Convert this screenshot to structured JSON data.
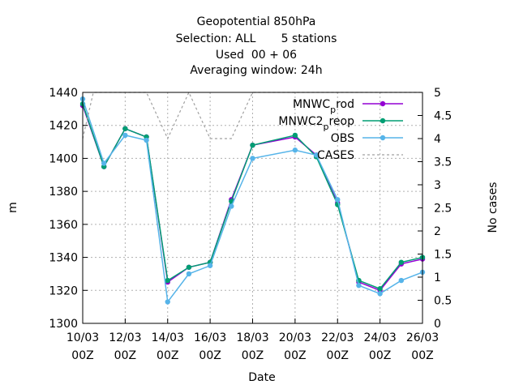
{
  "chart_data": {
    "type": "line",
    "title_lines": [
      "Geopotential 850hPa",
      "Selection: ALL       5 stations",
      "Used  00 + 06",
      "Averaging window: 24h"
    ],
    "xlabel": "Date",
    "ylabel": "m",
    "y2label": "No cases",
    "xlim": [
      0,
      16
    ],
    "ylim": [
      1300,
      1440
    ],
    "y2lim": [
      0,
      5
    ],
    "x_tick_labels": [
      {
        "x": 0,
        "line1": "10/03",
        "line2": "00Z"
      },
      {
        "x": 2,
        "line1": "12/03",
        "line2": "00Z"
      },
      {
        "x": 4,
        "line1": "14/03",
        "line2": "00Z"
      },
      {
        "x": 6,
        "line1": "16/03",
        "line2": "00Z"
      },
      {
        "x": 8,
        "line1": "18/03",
        "line2": "00Z"
      },
      {
        "x": 10,
        "line1": "20/03",
        "line2": "00Z"
      },
      {
        "x": 12,
        "line1": "22/03",
        "line2": "00Z"
      },
      {
        "x": 14,
        "line1": "24/03",
        "line2": "00Z"
      },
      {
        "x": 16,
        "line1": "26/03",
        "line2": "00Z"
      }
    ],
    "y_ticks": [
      1300,
      1320,
      1340,
      1360,
      1380,
      1400,
      1420,
      1440
    ],
    "y2_ticks": [
      "0",
      "0.5",
      "1",
      "1.5",
      "2",
      "2.5",
      "3",
      "3.5",
      "4",
      "4.5",
      "5"
    ],
    "grid": true,
    "legend_position": "top-right",
    "series": [
      {
        "name": "MNWC_prod",
        "legend_main": "MNWC",
        "legend_sub": "p",
        "legend_tail": "rod",
        "color": "#9400d3",
        "axis": "y",
        "dashed": false,
        "x": [
          0,
          1,
          2,
          3,
          4,
          5,
          6,
          7,
          8,
          10,
          11,
          12,
          13,
          14,
          15,
          16
        ],
        "y": [
          1432,
          1395,
          1418,
          1413,
          1325,
          1334,
          1337,
          1375,
          1408,
          1413,
          1402,
          1373,
          1325,
          1320,
          1336,
          1339
        ]
      },
      {
        "name": "MNWC2_preop",
        "legend_main": "MNWC2",
        "legend_sub": "p",
        "legend_tail": "reop",
        "color": "#009e73",
        "axis": "y",
        "dashed": false,
        "x": [
          0,
          1,
          2,
          3,
          4,
          5,
          6,
          7,
          8,
          10,
          11,
          12,
          13,
          14,
          15,
          16
        ],
        "y": [
          1433,
          1395,
          1418,
          1413,
          1326,
          1334,
          1337,
          1374,
          1408,
          1414,
          1401,
          1372,
          1326,
          1321,
          1337,
          1340
        ]
      },
      {
        "name": "OBS",
        "legend_main": "OBS",
        "legend_sub": "",
        "legend_tail": "",
        "color": "#56b4e9",
        "axis": "y",
        "dashed": false,
        "x": [
          0,
          1,
          2,
          3,
          4,
          5,
          6,
          7,
          8,
          10,
          11,
          12,
          13,
          14,
          15,
          16
        ],
        "y": [
          1436,
          1397,
          1414,
          1411,
          1313,
          1330,
          1335,
          1371,
          1400,
          1405,
          1402,
          1375,
          1323,
          1318,
          1326,
          1331
        ]
      },
      {
        "name": "CASES",
        "legend_main": "CASES",
        "legend_sub": "",
        "legend_tail": "",
        "color": "#a0a0a0",
        "axis": "y2",
        "dashed": true,
        "x": [
          0,
          0.5,
          1,
          2,
          3,
          4,
          4.5,
          5,
          6,
          7,
          8,
          10,
          11,
          12,
          13,
          14,
          15,
          16
        ],
        "y": [
          4,
          5,
          5,
          5,
          5,
          4,
          4.5,
          5,
          4,
          4,
          5,
          5,
          5,
          5,
          5,
          5,
          5,
          5
        ]
      }
    ]
  }
}
